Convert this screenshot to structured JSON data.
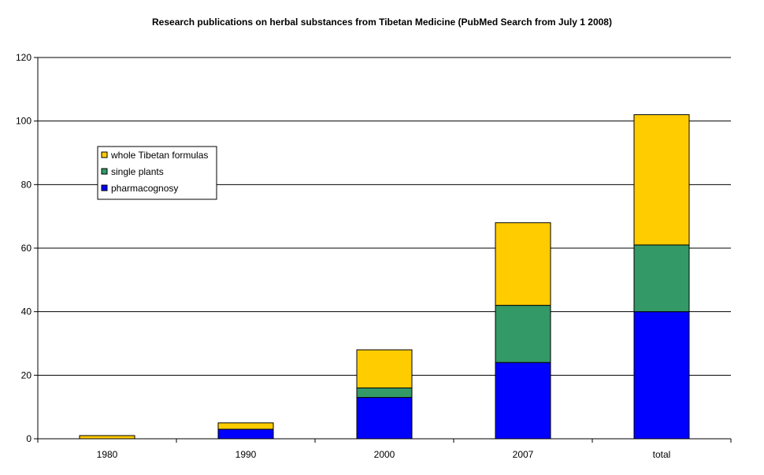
{
  "chart_data": {
    "type": "bar",
    "stacked": true,
    "title": "Research publications on herbal substances from Tibetan Medicine (PubMed Search from July 1 2008)",
    "xlabel": "",
    "ylabel": "",
    "categories": [
      "1980",
      "1990",
      "2000",
      "2007",
      "total"
    ],
    "ylim": [
      0,
      120
    ],
    "yticks": [
      0,
      20,
      40,
      60,
      80,
      100,
      120
    ],
    "grid": true,
    "legend_position": "upper-left",
    "series": [
      {
        "name": "pharmacognosy",
        "color": "#0000ff",
        "values": [
          0,
          3,
          13,
          24,
          40
        ]
      },
      {
        "name": "single plants",
        "color": "#339966",
        "values": [
          0,
          0,
          3,
          18,
          21
        ]
      },
      {
        "name": "whole Tibetan formulas",
        "color": "#ffcc00",
        "values": [
          1,
          2,
          12,
          26,
          41
        ]
      }
    ],
    "legend_order": [
      "whole Tibetan formulas",
      "single plants",
      "pharmacognosy"
    ]
  }
}
